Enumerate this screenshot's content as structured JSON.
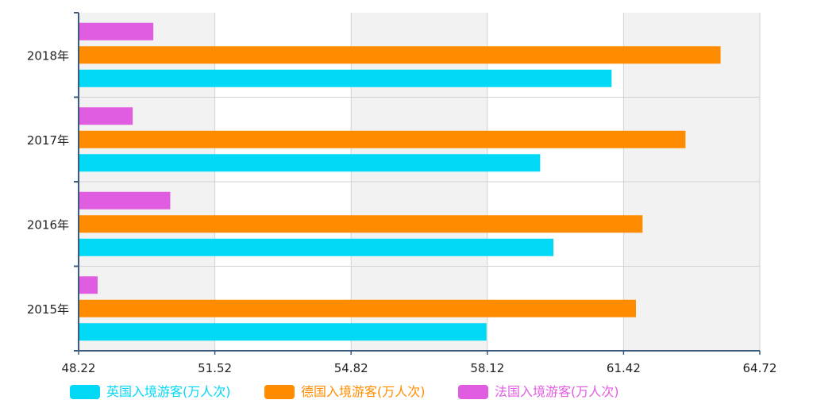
{
  "chart_data": {
    "type": "bar",
    "orientation": "horizontal",
    "categories": [
      "2015年",
      "2016年",
      "2017年",
      "2018年"
    ],
    "series": [
      {
        "name": "英国入境游客(万人次)",
        "color": "#00d8f6",
        "values": [
          58.1,
          59.72,
          59.4,
          61.13
        ]
      },
      {
        "name": "德国入境游客(万人次)",
        "color": "#ff8c00",
        "values": [
          61.72,
          61.88,
          62.92,
          63.77
        ]
      },
      {
        "name": "法国入境游客(万人次)",
        "color": "#e05ce0",
        "values": [
          48.68,
          50.44,
          49.53,
          50.03
        ]
      }
    ],
    "x_ticks": [
      "48.22",
      "51.52",
      "54.82",
      "58.12",
      "61.42",
      "64.72"
    ],
    "xlim": [
      48.22,
      64.72
    ],
    "grid": true,
    "legend_position": "bottom",
    "title": "",
    "xlabel": "",
    "ylabel": ""
  }
}
